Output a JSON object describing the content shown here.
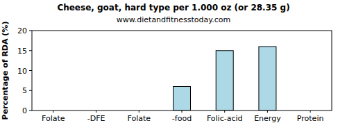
{
  "chart_data": {
    "type": "bar",
    "title": "Cheese, goat, hard type per 1.000 oz (or 28.35 g)",
    "subtitle": "www.dietandfitnesstoday.com",
    "y_label": "Percentage of RDA (%)",
    "categories": [
      "Folate",
      "-DFE",
      "Folate",
      "-food",
      "Folic-acid",
      "Energy",
      "Protein"
    ],
    "values": [
      0,
      0,
      0,
      6,
      15,
      16,
      0
    ],
    "color": "#add8e6",
    "ylim": [
      0,
      20
    ],
    "yticks": [
      0,
      5,
      10,
      15,
      20
    ],
    "grid": false
  }
}
